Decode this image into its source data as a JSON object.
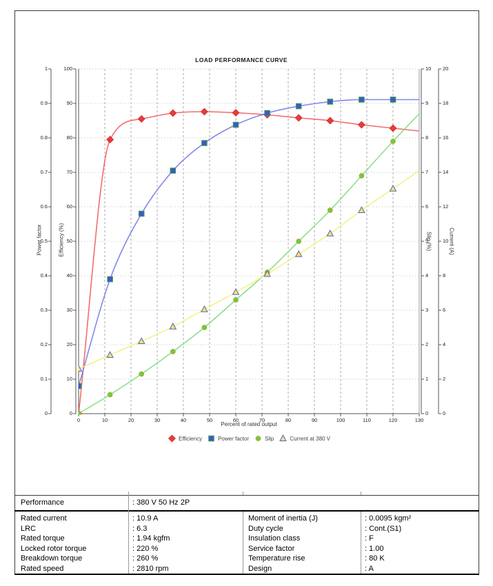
{
  "chart_data": {
    "type": "line",
    "title": "LOAD PERFORMANCE CURVE",
    "xlabel": "Percent of rated output",
    "xlim": [
      0,
      130
    ],
    "x_ticks": [
      0,
      10,
      20,
      30,
      40,
      50,
      60,
      70,
      80,
      90,
      100,
      110,
      120,
      130
    ],
    "grid": true,
    "legend_position": "bottom",
    "axes": {
      "power_factor": {
        "label": "Power factor",
        "range": [
          0,
          1
        ],
        "ticks": [
          0,
          0.1,
          0.2,
          0.3,
          0.4,
          0.5,
          0.6,
          0.7,
          0.8,
          0.9,
          1
        ]
      },
      "efficiency": {
        "label": "Efficiency (%)",
        "range": [
          0,
          100
        ],
        "ticks": [
          0,
          10,
          20,
          30,
          40,
          50,
          60,
          70,
          80,
          90,
          100
        ]
      },
      "slip": {
        "label": "Slip (%)",
        "range": [
          0,
          10
        ],
        "ticks": [
          0,
          1,
          2,
          3,
          4,
          5,
          6,
          7,
          8,
          9,
          10
        ]
      },
      "current": {
        "label": "Current (A)",
        "range": [
          0,
          20
        ],
        "ticks": [
          0,
          2,
          4,
          6,
          8,
          10,
          12,
          14,
          16,
          18,
          20
        ]
      }
    },
    "x": [
      0,
      12,
      24,
      36,
      48,
      60,
      72,
      84,
      96,
      108,
      120,
      130
    ],
    "marker_count": 11,
    "series": [
      {
        "name": "Efficiency",
        "axis": "efficiency",
        "marker": "diamond",
        "line_color": "#f15c5c",
        "marker_fill": "#e93b3b",
        "marker_edge": "#d32f2f",
        "values": [
          0,
          79.5,
          85.5,
          87.2,
          87.6,
          87.3,
          86.7,
          85.8,
          85.0,
          83.8,
          82.8,
          82.0
        ]
      },
      {
        "name": "Power factor",
        "axis": "power_factor",
        "marker": "square",
        "line_color": "#7679e8",
        "marker_fill": "#3f55d2",
        "marker_edge": "#3fa53f",
        "values": [
          0.08,
          0.39,
          0.58,
          0.705,
          0.785,
          0.838,
          0.872,
          0.892,
          0.905,
          0.911,
          0.911,
          0.911
        ]
      },
      {
        "name": "Slip",
        "axis": "slip",
        "marker": "circle",
        "line_color": "#7edc7e",
        "marker_fill": "#4ed947",
        "marker_edge": "#d79a33",
        "values": [
          0,
          0.55,
          1.15,
          1.8,
          2.5,
          3.3,
          4.1,
          5.0,
          5.9,
          6.9,
          7.9,
          8.7
        ]
      },
      {
        "name": "Current at 380 V",
        "axis": "current",
        "marker": "triangle",
        "line_color": "#f4ef7d",
        "marker_fill": "#efe954",
        "marker_edge": "#5d5fd8",
        "values": [
          2.6,
          3.4,
          4.2,
          5.05,
          6.05,
          7.05,
          8.1,
          9.25,
          10.45,
          11.8,
          13.05,
          14.1
        ]
      }
    ]
  },
  "table": {
    "performance": {
      "label": "Performance",
      "value": ": 380 V 50 Hz 2P"
    },
    "left_rows": [
      {
        "label": "Rated current",
        "value": ": 10.9 A"
      },
      {
        "label": "LRC",
        "value": ": 6.3"
      },
      {
        "label": "Rated torque",
        "value": ": 1.94 kgfm"
      },
      {
        "label": "Locked rotor torque",
        "value": ": 220 %"
      },
      {
        "label": "Breakdown torque",
        "value": ": 260 %"
      },
      {
        "label": "Rated speed",
        "value": ": 2810 rpm"
      }
    ],
    "right_rows": [
      {
        "label": "Moment of inertia (J)",
        "value": ": 0.0095 kgm²"
      },
      {
        "label": "Duty cycle",
        "value": ": Cont.(S1)"
      },
      {
        "label": "Insulation class",
        "value": ": F"
      },
      {
        "label": "Service factor",
        "value": ": 1.00"
      },
      {
        "label": "Temperature rise",
        "value": ": 80 K"
      },
      {
        "label": "Design",
        "value": ": A"
      }
    ]
  }
}
